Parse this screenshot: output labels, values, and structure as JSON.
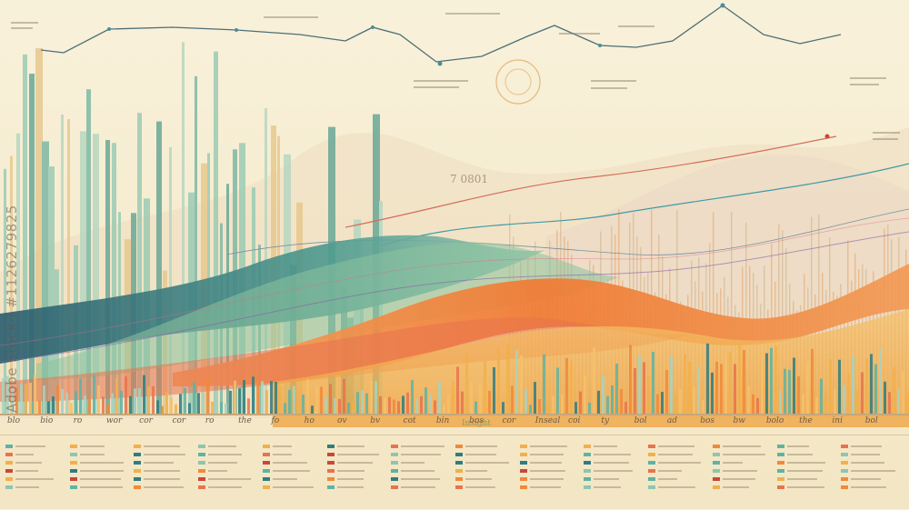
{
  "palette": {
    "background": "#f7efd6",
    "teal": "#5fb3a3",
    "sage": "#8fc5ad",
    "navy": "#2f5d70",
    "orange": "#f08a3a",
    "coral": "#e8734f",
    "gold": "#f2b04a",
    "red": "#c9473b"
  },
  "watermark": "Adobe Stock | #1126279825",
  "center_label": "7 0801",
  "center_small": "Insight",
  "axis_labels": [
    "blo",
    "bio",
    "ro",
    "wor",
    "cor",
    "cor",
    "ro",
    "the",
    "fo",
    "ho",
    "ov",
    "bv",
    "cot",
    "bin",
    "bos",
    "cor",
    "Inseal",
    "coi",
    "ty",
    "bol",
    "ad",
    "bos",
    "bw",
    "bolo",
    "the",
    "ini",
    "bol"
  ],
  "legend_columns": 14
}
